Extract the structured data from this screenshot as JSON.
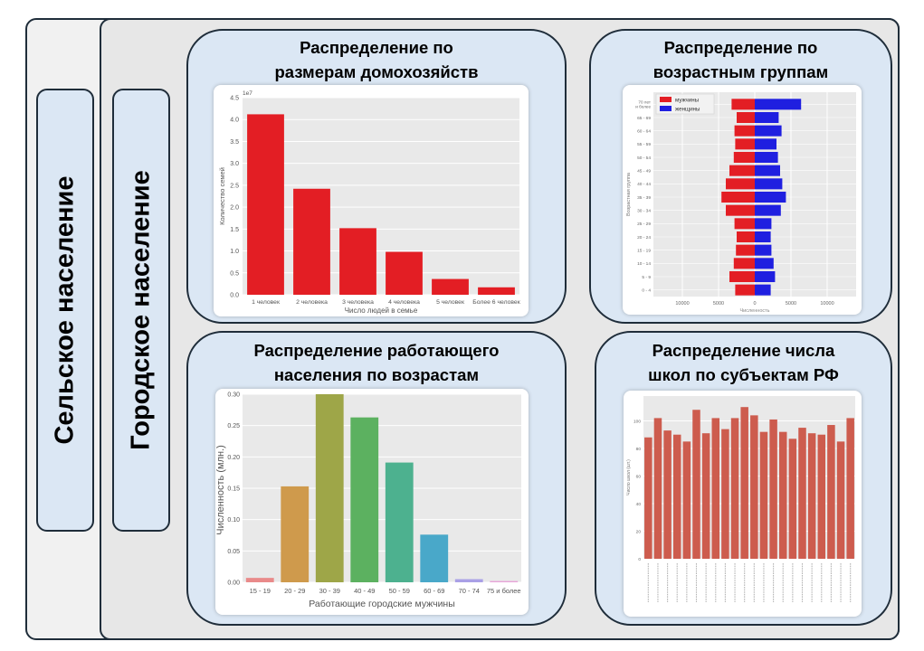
{
  "labels": {
    "rural": "Сельское население",
    "urban": "Городское население"
  },
  "panels": {
    "household": {
      "title_line1": "Распределение по",
      "title_line2": "размерам домохозяйств"
    },
    "age": {
      "title_line1": "Распределение по",
      "title_line2": "возрастным группам"
    },
    "working": {
      "title_line1": "Распределение работающего",
      "title_line2": "населения по возрастам"
    },
    "schools": {
      "title_line1": "Распределение числа",
      "title_line2": "школ по субъектам РФ"
    }
  },
  "colors": {
    "red_bar": "#e31e24",
    "male": "#e31e24",
    "female": "#1f1fe0",
    "school_bar": "#cd5c4e",
    "plot_bg": "#e9e9e9"
  },
  "chart_data": [
    {
      "id": "household",
      "type": "bar",
      "categories": [
        "1 человек",
        "2 человека",
        "3 человека",
        "4 человека",
        "5 человек",
        "Более 6 человек"
      ],
      "values": [
        4.12,
        2.42,
        1.52,
        0.98,
        0.36,
        0.17
      ],
      "scale_label": "1e7",
      "xlabel": "Число людей в семье",
      "ylabel": "Количество семей",
      "ylim": [
        0,
        4.5
      ],
      "yticks": [
        "0.0",
        "0.5",
        "1.0",
        "1.5",
        "2.0",
        "2.5",
        "3.0",
        "3.5",
        "4.0",
        "4.5"
      ],
      "grid": true
    },
    {
      "id": "age",
      "type": "bar",
      "orientation": "horizontal",
      "categories": [
        "70 лет и более",
        "65 - 69",
        "60 - 64",
        "55 - 59",
        "50 - 54",
        "45 - 49",
        "40 - 44",
        "35 - 39",
        "30 - 34",
        "25 - 29",
        "20 - 24",
        "15 - 19",
        "10 - 14",
        "5 - 9",
        "0 - 4"
      ],
      "series": [
        {
          "name": "мужчины",
          "values": [
            -3200,
            -2500,
            -2800,
            -2700,
            -2900,
            -3500,
            -4000,
            -4600,
            -4000,
            -2800,
            -2500,
            -2600,
            -2900,
            -3500,
            -2700
          ]
        },
        {
          "name": "женщины",
          "values": [
            6400,
            3300,
            3700,
            3000,
            3200,
            3500,
            3800,
            4300,
            3600,
            2300,
            2200,
            2300,
            2600,
            2800,
            2200
          ]
        }
      ],
      "xlabel": "Численность",
      "ylabel": "Возрастная группа",
      "xticks": [
        "10000",
        "5000",
        "0",
        "5000",
        "10000"
      ],
      "xlim": [
        -14000,
        14000
      ],
      "legend": "top-left",
      "grid": true
    },
    {
      "id": "working",
      "type": "bar",
      "categories": [
        "15 - 19",
        "20 - 29",
        "30 - 39",
        "40 - 49",
        "50 - 59",
        "60 - 69",
        "70 - 74",
        "75 и более"
      ],
      "values": [
        0.007,
        0.153,
        0.3,
        0.263,
        0.191,
        0.076,
        0.005,
        0.002
      ],
      "colors": [
        "#e98a8a",
        "#cf9a4c",
        "#9ea648",
        "#5cb160",
        "#4db18f",
        "#49a8c9",
        "#a9a0e6",
        "#e7a5d8"
      ],
      "xlabel": "Работающие городские мужчины",
      "ylabel": "Численность (млн.)",
      "ylim": [
        0,
        0.3
      ],
      "yticks": [
        "0.00",
        "0.05",
        "0.10",
        "0.15",
        "0.20",
        "0.25",
        "0.30"
      ],
      "grid": true
    },
    {
      "id": "schools",
      "type": "bar",
      "values": [
        88,
        102,
        93,
        90,
        85,
        108,
        91,
        102,
        94,
        102,
        110,
        104,
        92,
        101,
        92,
        87,
        95,
        91,
        90,
        97,
        85,
        102
      ],
      "ylabel": "Число школ (шт.)",
      "yticks": [
        "0",
        "20",
        "40",
        "60",
        "80",
        "100"
      ],
      "ylim": [
        0,
        118
      ],
      "grid": true
    }
  ]
}
